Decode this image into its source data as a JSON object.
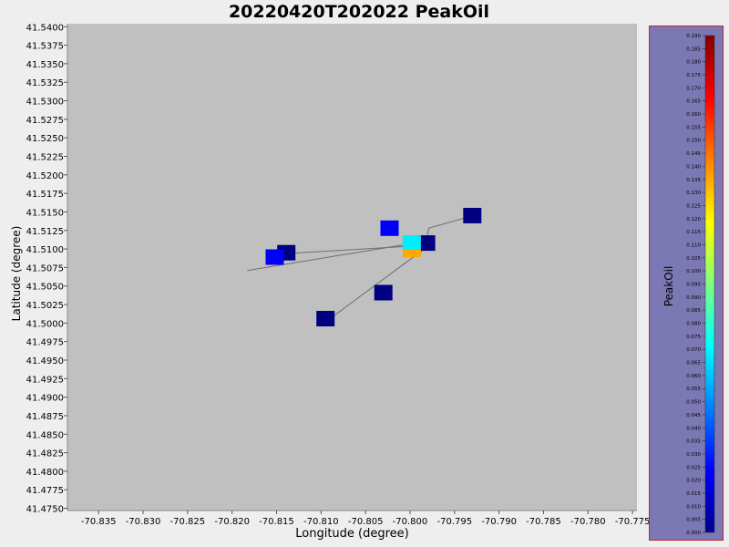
{
  "chart_data": {
    "type": "scatter",
    "title": "20220420T202022 PeakOil",
    "xlabel": "Longitude (degree)",
    "ylabel": "Latitude (degree)",
    "xlim": [
      -70.8385,
      -70.7745
    ],
    "ylim": [
      41.4747,
      41.5404
    ],
    "x_ticks": [
      "-70.835",
      "-70.830",
      "-70.825",
      "-70.820",
      "-70.815",
      "-70.810",
      "-70.805",
      "-70.800",
      "-70.795",
      "-70.790",
      "-70.785",
      "-70.780",
      "-70.775"
    ],
    "y_ticks": [
      "41.4750",
      "41.4775",
      "41.4800",
      "41.4825",
      "41.4850",
      "41.4875",
      "41.4900",
      "41.4925",
      "41.4950",
      "41.4975",
      "41.5000",
      "41.5025",
      "41.5050",
      "41.5075",
      "41.5100",
      "41.5125",
      "41.5150",
      "41.5175",
      "41.5200",
      "41.5225",
      "41.5250",
      "41.5275",
      "41.5300",
      "41.5325",
      "41.5350",
      "41.5375",
      "41.5400"
    ],
    "grid": false,
    "plot_background": "#c0c0c0",
    "tracks": [
      {
        "points": [
          [
            -70.8183,
            41.5071
          ],
          [
            -70.7995,
            41.5108
          ]
        ]
      },
      {
        "points": [
          [
            -70.8137,
            41.5094
          ],
          [
            -70.7995,
            41.5104
          ]
        ]
      },
      {
        "points": [
          [
            -70.8091,
            41.5005
          ],
          [
            -70.7983,
            41.5101
          ]
        ]
      },
      {
        "points": [
          [
            -70.7983,
            41.5101
          ],
          [
            -70.7979,
            41.5128
          ],
          [
            -70.7932,
            41.5144
          ]
        ]
      }
    ],
    "points": [
      {
        "x": -70.793,
        "y": 41.5145,
        "value": 0.0
      },
      {
        "x": -70.8023,
        "y": 41.5128,
        "value": 0.022
      },
      {
        "x": -70.7982,
        "y": 41.5108,
        "value": 0.0
      },
      {
        "x": -70.7998,
        "y": 41.5108,
        "value": 0.068
      },
      {
        "x": -70.7998,
        "y": 41.5094,
        "value": 0.135
      },
      {
        "x": -70.8139,
        "y": 41.5095,
        "value": 0.0
      },
      {
        "x": -70.8152,
        "y": 41.5089,
        "value": 0.022
      },
      {
        "x": -70.803,
        "y": 41.5041,
        "value": 0.0
      },
      {
        "x": -70.8095,
        "y": 41.5006,
        "value": 0.0
      }
    ],
    "colorbar": {
      "label": "PeakOil",
      "min": 0.0,
      "max": 0.19,
      "colormap": "jet",
      "ticks": [
        "0.000",
        "0.005",
        "0.010",
        "0.015",
        "0.020",
        "0.025",
        "0.030",
        "0.035",
        "0.040",
        "0.045",
        "0.050",
        "0.055",
        "0.060",
        "0.065",
        "0.070",
        "0.075",
        "0.080",
        "0.085",
        "0.090",
        "0.095",
        "0.100",
        "0.105",
        "0.110",
        "0.115",
        "0.120",
        "0.125",
        "0.130",
        "0.135",
        "0.140",
        "0.145",
        "0.150",
        "0.155",
        "0.160",
        "0.165",
        "0.170",
        "0.175",
        "0.180",
        "0.185",
        "0.190"
      ]
    }
  }
}
